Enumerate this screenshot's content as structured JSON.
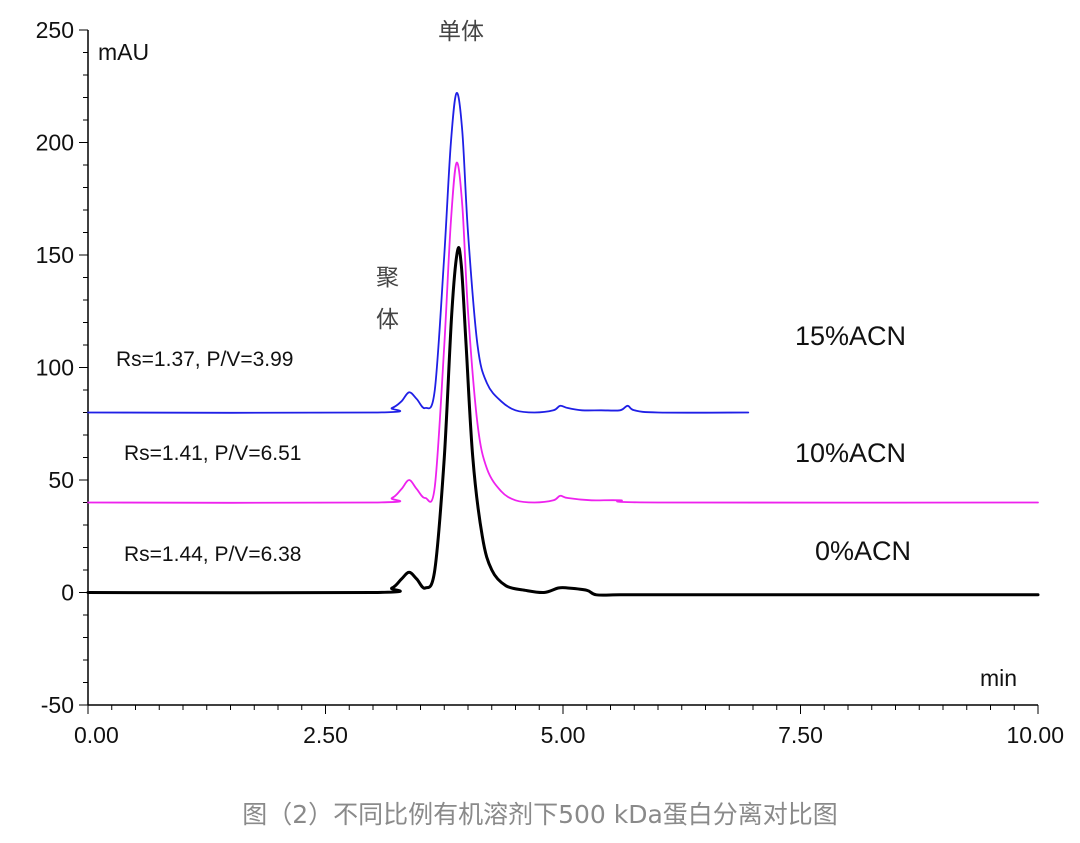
{
  "caption": "图（2）不同比例有机溶剂下500 kDa蛋白分离对比图",
  "chart_data": {
    "type": "line",
    "title": "",
    "xlabel": "min",
    "ylabel": "mAU",
    "xlim": [
      0,
      10
    ],
    "ylim": [
      -50,
      250
    ],
    "x_ticks": [
      "0.00",
      "2.50",
      "5.00",
      "7.50",
      "10.00"
    ],
    "y_ticks": [
      "250",
      "200",
      "150",
      "100",
      "50",
      "0",
      "-50"
    ],
    "annotations": {
      "monomer": "单体",
      "aggregate_line1": "聚",
      "aggregate_line2": "体"
    },
    "series": [
      {
        "name": "15%ACN",
        "color": "#1f1fe6",
        "resolution": "Rs=1.37, P/V=3.99",
        "x": [
          0,
          3.0,
          3.2,
          3.3,
          3.38,
          3.46,
          3.55,
          3.65,
          3.75,
          3.82,
          3.88,
          3.94,
          4.0,
          4.1,
          4.2,
          4.35,
          4.5,
          4.7,
          4.9,
          4.97,
          5.05,
          5.2,
          5.4,
          5.6,
          5.68,
          5.75,
          6.0,
          6.95
        ],
        "y": [
          80,
          80,
          82,
          85,
          89,
          86,
          82,
          90,
          150,
          200,
          222,
          205,
          160,
          110,
          93,
          85,
          81,
          80,
          81,
          83,
          82,
          81,
          81,
          81,
          83,
          81,
          80,
          80
        ]
      },
      {
        "name": "10%ACN",
        "color": "#ee22ee",
        "resolution": "Rs=1.41, P/V=6.51",
        "x": [
          0,
          3.0,
          3.2,
          3.3,
          3.38,
          3.46,
          3.55,
          3.65,
          3.75,
          3.82,
          3.88,
          3.94,
          4.0,
          4.1,
          4.2,
          4.35,
          4.5,
          4.7,
          4.9,
          4.97,
          5.05,
          5.3,
          5.6,
          6.0,
          10.0
        ],
        "y": [
          40,
          40,
          42,
          46,
          50,
          46,
          42,
          47,
          110,
          165,
          191,
          172,
          125,
          75,
          55,
          45,
          41,
          40,
          41,
          43,
          42,
          41,
          41,
          40,
          40
        ]
      },
      {
        "name": "0%ACN",
        "color": "#000000",
        "resolution": "Rs=1.44, P/V=6.38",
        "x": [
          0,
          3.0,
          3.2,
          3.3,
          3.38,
          3.46,
          3.55,
          3.65,
          3.75,
          3.83,
          3.89,
          3.93,
          3.98,
          4.05,
          4.15,
          4.25,
          4.4,
          4.6,
          4.8,
          4.95,
          5.05,
          5.25,
          5.35,
          5.6,
          6.0,
          8.0,
          10.0
        ],
        "y": [
          0,
          0,
          2,
          6,
          9,
          6,
          2,
          10,
          60,
          125,
          152,
          145,
          110,
          60,
          25,
          10,
          3,
          1,
          0,
          2,
          2,
          1,
          -1,
          -1,
          -1,
          -1,
          -1
        ]
      }
    ]
  }
}
